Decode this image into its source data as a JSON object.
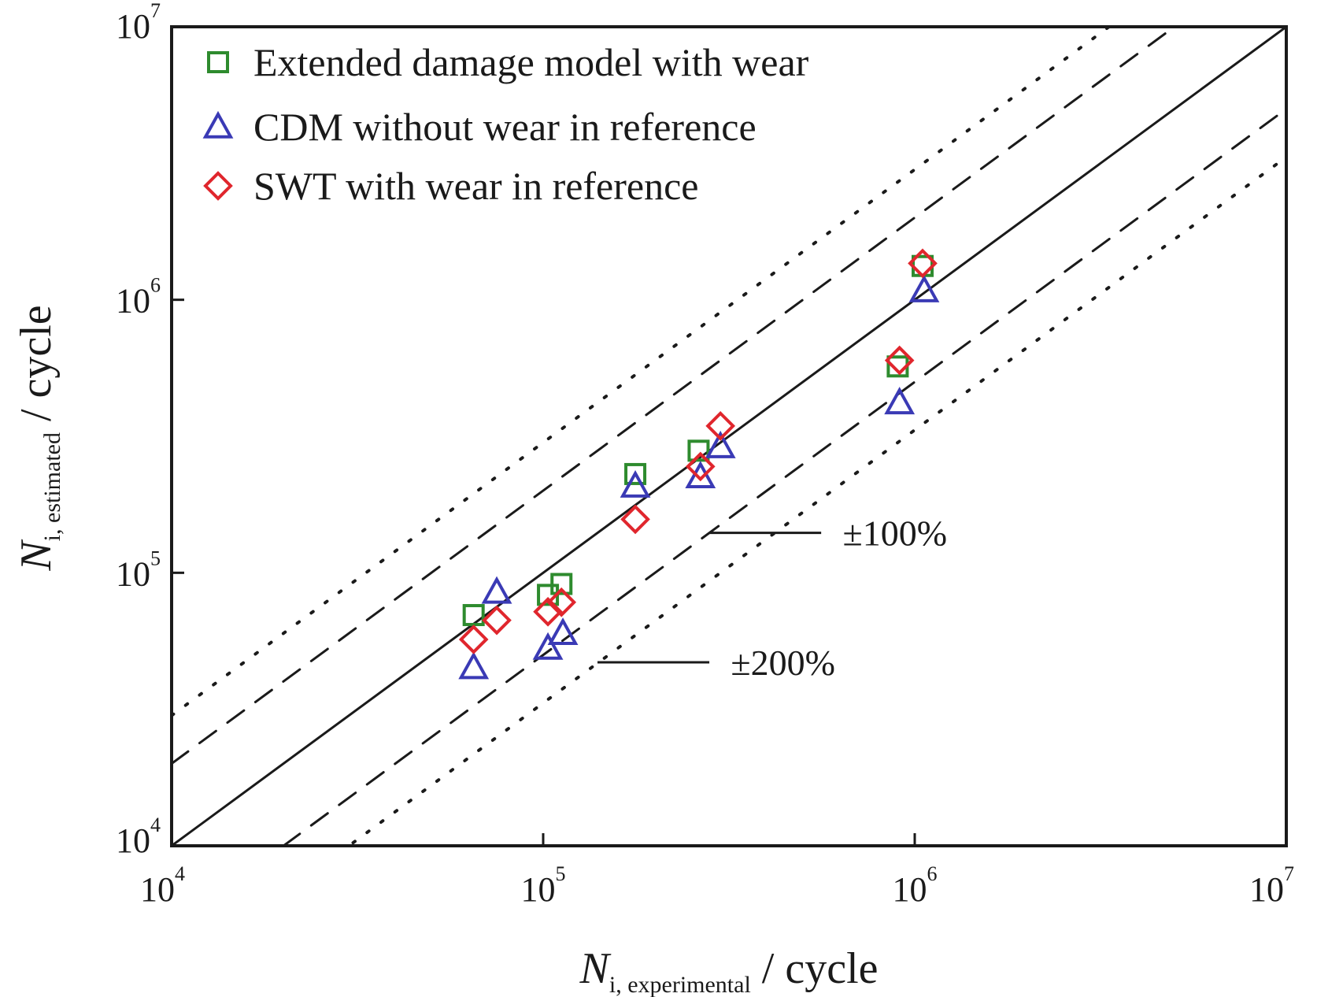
{
  "chart_data": {
    "type": "scatter",
    "scale": "log-log",
    "xlim": [
      10000,
      10000000
    ],
    "ylim": [
      10000,
      10000000
    ],
    "xticks": [
      {
        "base": "10",
        "exp": "4",
        "value": 10000
      },
      {
        "base": "10",
        "exp": "5",
        "value": 100000
      },
      {
        "base": "10",
        "exp": "6",
        "value": 1000000
      },
      {
        "base": "10",
        "exp": "7",
        "value": 10000000
      }
    ],
    "yticks": [
      {
        "base": "10",
        "exp": "4",
        "value": 10000
      },
      {
        "base": "10",
        "exp": "5",
        "value": 100000
      },
      {
        "base": "10",
        "exp": "6",
        "value": 1000000
      },
      {
        "base": "10",
        "exp": "7",
        "value": 10000000
      }
    ],
    "xlabel": {
      "main": "N",
      "sub": "i, experimental",
      "unit": " / cycle"
    },
    "ylabel": {
      "main": "N",
      "sub": "i, estimated",
      "unit": " / cycle"
    },
    "legend_position": "top-left",
    "series": [
      {
        "name": "Extended damage model with wear",
        "marker": "square",
        "color": "#2e8b2e",
        "points": [
          [
            65000,
            70000
          ],
          [
            103000,
            83000
          ],
          [
            112000,
            91000
          ],
          [
            177000,
            230000
          ],
          [
            262000,
            280000
          ],
          [
            900000,
            570000
          ],
          [
            1050000,
            1330000
          ]
        ]
      },
      {
        "name": "CDM without wear in reference",
        "marker": "triangle",
        "color": "#3a3ab5",
        "points": [
          [
            65000,
            45000
          ],
          [
            75000,
            85000
          ],
          [
            103000,
            53000
          ],
          [
            113000,
            60000
          ],
          [
            177000,
            208000
          ],
          [
            265000,
            225000
          ],
          [
            300000,
            290000
          ],
          [
            910000,
            420000
          ],
          [
            1060000,
            1080000
          ]
        ]
      },
      {
        "name": "SWT with wear in reference",
        "marker": "diamond",
        "color": "#e0262d",
        "points": [
          [
            65000,
            57000
          ],
          [
            75000,
            67000
          ],
          [
            103000,
            72000
          ],
          [
            112000,
            78000
          ],
          [
            177000,
            157000
          ],
          [
            265000,
            245000
          ],
          [
            300000,
            345000
          ],
          [
            910000,
            600000
          ],
          [
            1050000,
            1360000
          ]
        ]
      }
    ],
    "reference_lines": [
      {
        "kind": "solid",
        "factor": 1
      },
      {
        "kind": "dashed",
        "factor": 2
      },
      {
        "kind": "dashed",
        "factor": 0.5
      },
      {
        "kind": "dotted",
        "factor": 3
      },
      {
        "kind": "dotted",
        "factor": 0.3333
      }
    ],
    "annotations": [
      {
        "text": "±100%",
        "line_from": [
          280000,
          140000
        ],
        "line_to": [
          560000,
          140000
        ],
        "text_at": [
          640000,
          140000
        ]
      },
      {
        "text": "±200%",
        "line_from": [
          140000,
          47000
        ],
        "line_to": [
          280000,
          47000
        ],
        "text_at": [
          320000,
          47000
        ]
      }
    ]
  }
}
